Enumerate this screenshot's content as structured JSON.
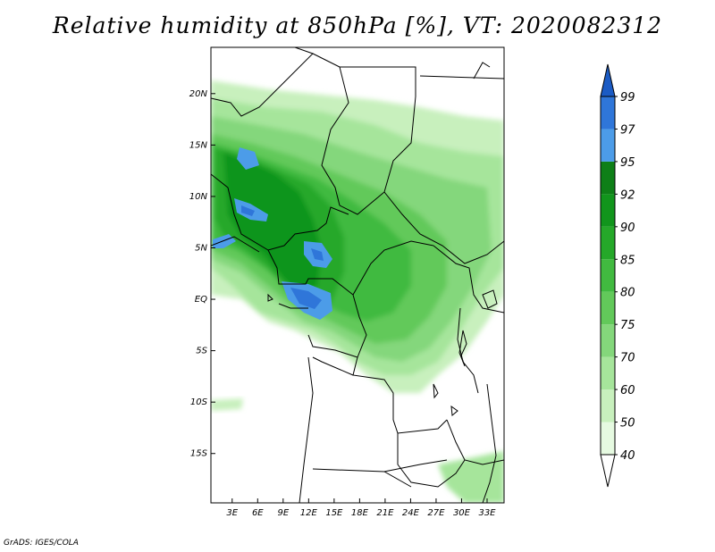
{
  "title": "Relative humidity at 850hPa [%], VT: 2020082312",
  "credit": "GrADS: IGES/COLA",
  "lat_labels": [
    "20N",
    "15N",
    "10N",
    "5N",
    "EQ",
    "5S",
    "10S",
    "15S"
  ],
  "lat_values": [
    20,
    15,
    10,
    5,
    0,
    -5,
    -10,
    -15
  ],
  "lon_labels": [
    "3E",
    "6E",
    "9E",
    "12E",
    "15E",
    "18E",
    "21E",
    "24E",
    "27E",
    "30E",
    "33E"
  ],
  "lon_values": [
    3,
    6,
    9,
    12,
    15,
    18,
    21,
    24,
    27,
    30,
    33
  ],
  "extent": {
    "lon": [
      0.5,
      35
    ],
    "lat": [
      -19.8,
      24.5
    ]
  },
  "colorbar": {
    "levels": [
      "40",
      "50",
      "60",
      "70",
      "75",
      "80",
      "85",
      "90",
      "92",
      "95",
      "97",
      "99"
    ],
    "colors": [
      "#ffffff",
      "#e6fae1",
      "#c8f0bd",
      "#a6e59b",
      "#84d77b",
      "#62c95a",
      "#41ba40",
      "#25a829",
      "#11951c",
      "#0e7f17",
      "#4c9ce8",
      "#2f76d9",
      "#1b5bc4"
    ]
  }
}
